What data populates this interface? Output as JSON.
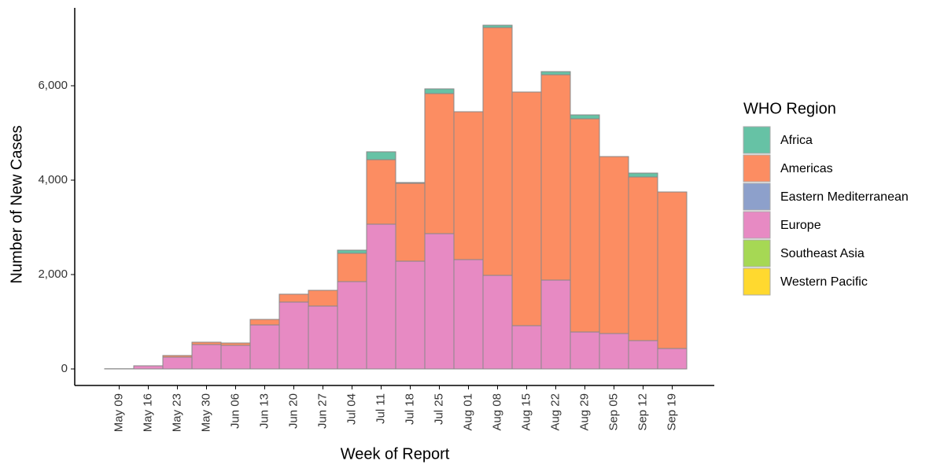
{
  "chart_data": {
    "type": "stacked-bar",
    "x_label": "Week of Report",
    "y_label": "Number of New Cases",
    "legend_title": "WHO Region",
    "categories": [
      "May 09",
      "May 16",
      "May 23",
      "May 30",
      "Jun 06",
      "Jun 13",
      "Jun 20",
      "Jun 27",
      "Jul 04",
      "Jul 11",
      "Jul 18",
      "Jul 25",
      "Aug 01",
      "Aug 08",
      "Aug 15",
      "Aug 22",
      "Aug 29",
      "Sep 05",
      "Sep 12",
      "Sep 19"
    ],
    "series": [
      {
        "name": "Africa",
        "color": "#66c2a5",
        "values": [
          0,
          0,
          0,
          0,
          0,
          0,
          0,
          0,
          67,
          167,
          17,
          100,
          0,
          50,
          0,
          67,
          83,
          0,
          83,
          0
        ]
      },
      {
        "name": "Americas",
        "color": "#fc8d62",
        "values": [
          0,
          0,
          35,
          50,
          50,
          117,
          167,
          333,
          600,
          1367,
          1650,
          2967,
          3133,
          5250,
          4950,
          4350,
          4517,
          3750,
          3467,
          3317
        ]
      },
      {
        "name": "Eastern Mediterranean",
        "color": "#8da0cb",
        "values": [
          0,
          0,
          0,
          0,
          0,
          0,
          0,
          0,
          0,
          0,
          0,
          0,
          0,
          0,
          0,
          0,
          0,
          0,
          0,
          0
        ]
      },
      {
        "name": "Europe",
        "color": "#e78ac3",
        "values": [
          5,
          67,
          250,
          517,
          500,
          933,
          1417,
          1333,
          1850,
          3067,
          2283,
          2867,
          2317,
          1983,
          917,
          1883,
          783,
          750,
          600,
          433
        ]
      },
      {
        "name": "Southeast Asia",
        "color": "#a6d854",
        "values": [
          0,
          0,
          0,
          0,
          0,
          0,
          0,
          0,
          0,
          0,
          0,
          0,
          0,
          0,
          0,
          0,
          0,
          0,
          0,
          0
        ]
      },
      {
        "name": "Western Pacific",
        "color": "#ffd92f",
        "values": [
          0,
          0,
          0,
          0,
          0,
          0,
          0,
          0,
          0,
          0,
          0,
          0,
          0,
          0,
          0,
          0,
          0,
          0,
          0,
          0
        ]
      }
    ],
    "ylim": [
      -350,
      7650
    ],
    "yticks": [
      0,
      {
        "value": 2000,
        "label": "2,000"
      },
      {
        "value": 4000,
        "label": "4,000"
      },
      {
        "value": 6000,
        "label": "6,000"
      }
    ],
    "grid": false,
    "legend_position": "right"
  }
}
